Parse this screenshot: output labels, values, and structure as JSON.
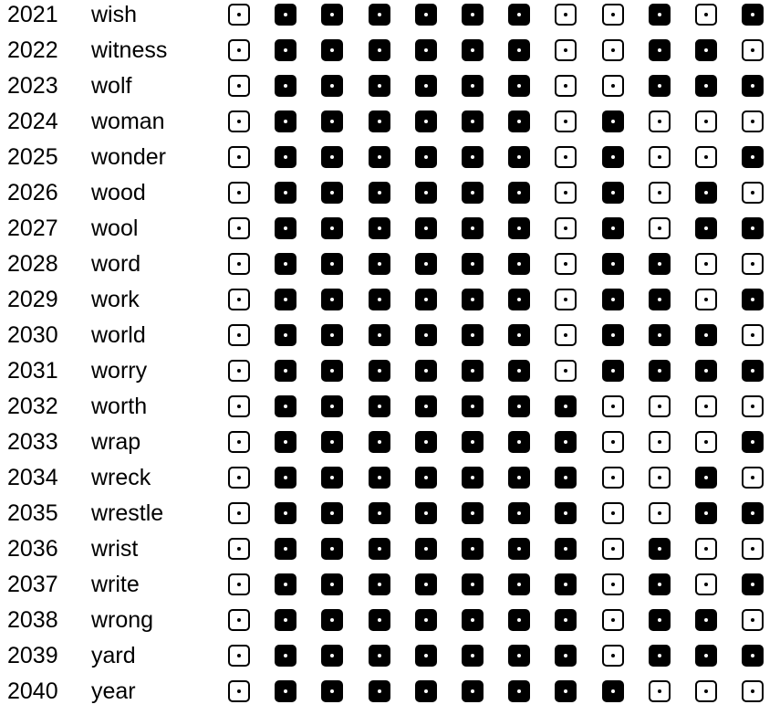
{
  "rows": [
    {
      "number": "2021",
      "word": "wish",
      "bits": [
        0,
        1,
        1,
        1,
        1,
        1,
        1,
        0,
        0,
        1,
        0,
        1
      ]
    },
    {
      "number": "2022",
      "word": "witness",
      "bits": [
        0,
        1,
        1,
        1,
        1,
        1,
        1,
        0,
        0,
        1,
        1,
        0
      ]
    },
    {
      "number": "2023",
      "word": "wolf",
      "bits": [
        0,
        1,
        1,
        1,
        1,
        1,
        1,
        0,
        0,
        1,
        1,
        1
      ]
    },
    {
      "number": "2024",
      "word": "woman",
      "bits": [
        0,
        1,
        1,
        1,
        1,
        1,
        1,
        0,
        1,
        0,
        0,
        0
      ]
    },
    {
      "number": "2025",
      "word": "wonder",
      "bits": [
        0,
        1,
        1,
        1,
        1,
        1,
        1,
        0,
        1,
        0,
        0,
        1
      ]
    },
    {
      "number": "2026",
      "word": "wood",
      "bits": [
        0,
        1,
        1,
        1,
        1,
        1,
        1,
        0,
        1,
        0,
        1,
        0
      ]
    },
    {
      "number": "2027",
      "word": "wool",
      "bits": [
        0,
        1,
        1,
        1,
        1,
        1,
        1,
        0,
        1,
        0,
        1,
        1
      ]
    },
    {
      "number": "2028",
      "word": "word",
      "bits": [
        0,
        1,
        1,
        1,
        1,
        1,
        1,
        0,
        1,
        1,
        0,
        0
      ]
    },
    {
      "number": "2029",
      "word": "work",
      "bits": [
        0,
        1,
        1,
        1,
        1,
        1,
        1,
        0,
        1,
        1,
        0,
        1
      ]
    },
    {
      "number": "2030",
      "word": "world",
      "bits": [
        0,
        1,
        1,
        1,
        1,
        1,
        1,
        0,
        1,
        1,
        1,
        0
      ]
    },
    {
      "number": "2031",
      "word": "worry",
      "bits": [
        0,
        1,
        1,
        1,
        1,
        1,
        1,
        0,
        1,
        1,
        1,
        1
      ]
    },
    {
      "number": "2032",
      "word": "worth",
      "bits": [
        0,
        1,
        1,
        1,
        1,
        1,
        1,
        1,
        0,
        0,
        0,
        0
      ]
    },
    {
      "number": "2033",
      "word": "wrap",
      "bits": [
        0,
        1,
        1,
        1,
        1,
        1,
        1,
        1,
        0,
        0,
        0,
        1
      ]
    },
    {
      "number": "2034",
      "word": "wreck",
      "bits": [
        0,
        1,
        1,
        1,
        1,
        1,
        1,
        1,
        0,
        0,
        1,
        0
      ]
    },
    {
      "number": "2035",
      "word": "wrestle",
      "bits": [
        0,
        1,
        1,
        1,
        1,
        1,
        1,
        1,
        0,
        0,
        1,
        1
      ]
    },
    {
      "number": "2036",
      "word": "wrist",
      "bits": [
        0,
        1,
        1,
        1,
        1,
        1,
        1,
        1,
        0,
        1,
        0,
        0
      ]
    },
    {
      "number": "2037",
      "word": "write",
      "bits": [
        0,
        1,
        1,
        1,
        1,
        1,
        1,
        1,
        0,
        1,
        0,
        1
      ]
    },
    {
      "number": "2038",
      "word": "wrong",
      "bits": [
        0,
        1,
        1,
        1,
        1,
        1,
        1,
        1,
        0,
        1,
        1,
        0
      ]
    },
    {
      "number": "2039",
      "word": "yard",
      "bits": [
        0,
        1,
        1,
        1,
        1,
        1,
        1,
        1,
        0,
        1,
        1,
        1
      ]
    },
    {
      "number": "2040",
      "word": "year",
      "bits": [
        0,
        1,
        1,
        1,
        1,
        1,
        1,
        1,
        1,
        0,
        0,
        0
      ]
    }
  ],
  "colors": {
    "filled": "#000000",
    "empty": "#ffffff",
    "text": "#000000"
  },
  "icons": {
    "filled_bit": "filled-square-dot-icon",
    "empty_bit": "empty-square-dot-icon"
  }
}
